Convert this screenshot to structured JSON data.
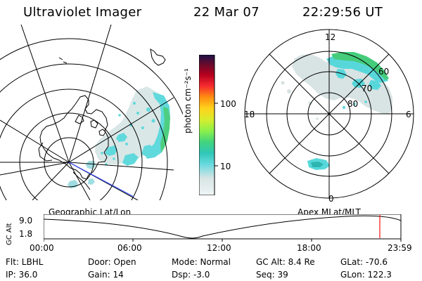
{
  "header": {
    "title": "Ultraviolet Imager",
    "date": "22 Mar 07",
    "time": "22:29:56 UT"
  },
  "colorbar": {
    "label": "photon cm⁻²s⁻¹",
    "ticks": [
      "100",
      "10"
    ]
  },
  "polar_plot": {
    "lat_labels": [
      "60",
      "70",
      "80"
    ],
    "mlt_labels": {
      "top": "12",
      "bottom": "0",
      "left": "18",
      "right": "6"
    }
  },
  "timeline": {
    "left_label": "Geographic Lat/Lon",
    "right_label": "Apex MLat/MLT",
    "y_axis_label": "GC Alt",
    "y_ticks": [
      "9.0",
      "1.8"
    ],
    "x_ticks": [
      "00:00",
      "06:00",
      "12:00",
      "18:00",
      "23:59"
    ]
  },
  "footer": {
    "flt": "Flt: LBHL",
    "ip": "IP: 36.0",
    "door": "Door: Open",
    "gain": "Gain: 14",
    "mode": "Mode: Normal",
    "dsp": "Dsp:     -3.0",
    "gc_alt": "GC Alt: 8.4 Re",
    "seq": "Seq: 39",
    "glat": "GLat: -70.6",
    "glon": "GLon: 122.3"
  },
  "colors": {
    "cyan": "#58d7db",
    "teal": "#2db5b1",
    "green": "#45cc7b",
    "light_gray": "#d7dfdf",
    "blue_line": "#3a4fff",
    "red_marker": "#ff1010"
  }
}
